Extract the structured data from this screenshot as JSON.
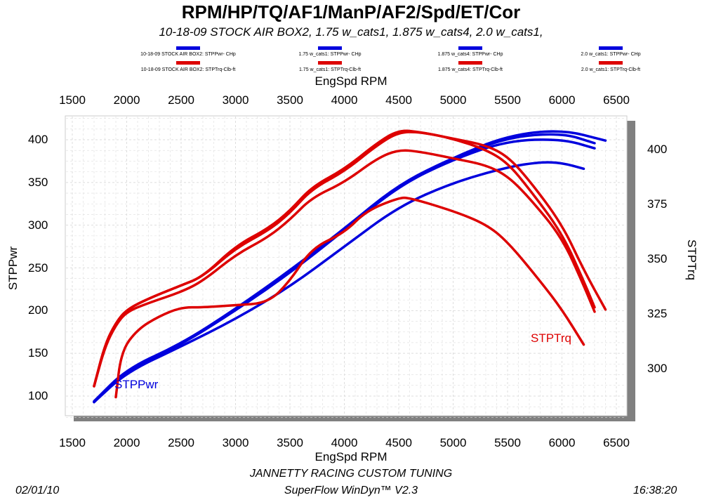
{
  "chart_data": {
    "type": "line",
    "title": "RPM/HP/TQ/AF1/ManP/AF2/Spd/ET/Cor",
    "subtitle": "10-18-09 STOCK AIR BOX2, 1.75 w_cats1, 1.875 w_cats4, 2.0 w_cats1,",
    "xlabel": "EngSpd  RPM",
    "ylabel": "STPPwr",
    "y2label": "STPTrq",
    "xlim": [
      1500,
      6500
    ],
    "ylim": [
      75,
      425
    ],
    "y2lim": [
      280,
      415
    ],
    "xticks": [
      1500,
      2000,
      2500,
      3000,
      3500,
      4000,
      4500,
      5000,
      5500,
      6000,
      6500
    ],
    "yticks": [
      100,
      150,
      200,
      250,
      300,
      350,
      400
    ],
    "y2ticks": [
      300,
      325,
      350,
      375,
      400
    ],
    "grid": true,
    "legend": [
      {
        "power": "10-18-09 STOCK AIR BOX2: STPPwr- CHp",
        "torque": "10-18-09 STOCK AIR BOX2: STPTrq-Clb-ft"
      },
      {
        "power": "1.75 w_cats1: STPPwr- CHp",
        "torque": "1.75 w_cats1: STPTrq-Clb-ft"
      },
      {
        "power": "1.875 w_cats4: STPPwr- CHp",
        "torque": "1.875 w_cats4: STPTrq-Clb-ft"
      },
      {
        "power": "2.0 w_cats1: STPPwr- CHp",
        "torque": "2.0 w_cats1: STPTrq-Clb-ft"
      }
    ],
    "annotations": {
      "power": "STPPwr",
      "torque": "STPTrq"
    },
    "power_color": "#0000dd",
    "torque_color": "#dd0000",
    "power_series": [
      {
        "name": "10-18-09 STOCK AIR BOX2",
        "x": [
          1700,
          2000,
          2500,
          3000,
          3500,
          4000,
          4500,
          5000,
          5500,
          5800,
          6000,
          6200
        ],
        "y": [
          93,
          128,
          158,
          190,
          228,
          275,
          322,
          350,
          368,
          374,
          373,
          366
        ]
      },
      {
        "name": "1.75 w_cats1",
        "x": [
          1700,
          2000,
          2500,
          3000,
          3500,
          4000,
          4500,
          5000,
          5500,
          6000,
          6300
        ],
        "y": [
          93,
          130,
          160,
          200,
          244,
          294,
          346,
          377,
          399,
          401,
          390
        ]
      },
      {
        "name": "1.875 w_cats4",
        "x": [
          1700,
          2000,
          2500,
          3000,
          3500,
          4000,
          4500,
          5000,
          5500,
          6000,
          6300
        ],
        "y": [
          93,
          131,
          161,
          201,
          246,
          295,
          347,
          378,
          403,
          408,
          396
        ]
      },
      {
        "name": "2.0 w_cats1",
        "x": [
          1700,
          2000,
          2500,
          3000,
          3500,
          4000,
          4500,
          5000,
          5500,
          6000,
          6400
        ],
        "y": [
          94,
          132,
          161,
          202,
          247,
          296,
          348,
          379,
          405,
          412,
          399
        ]
      }
    ],
    "torque_series": [
      {
        "name": "10-18-09 STOCK AIR BOX2",
        "x": [
          1900,
          1950,
          2100,
          2300,
          2500,
          2700,
          3000,
          3300,
          3500,
          3700,
          4000,
          4200,
          4500,
          4600,
          5000,
          5300,
          5500,
          5800,
          6000,
          6200
        ],
        "y": [
          287,
          308,
          318,
          324,
          328,
          328,
          329,
          330,
          340,
          355,
          362,
          372,
          378,
          378,
          372,
          366,
          358,
          340,
          327,
          311
        ]
      },
      {
        "name": "1.75 w_cats1",
        "x": [
          1700,
          1800,
          1900,
          2000,
          2200,
          2500,
          2700,
          3000,
          3300,
          3500,
          3700,
          4000,
          4300,
          4500,
          4700,
          5000,
          5300,
          5500,
          5700,
          6000,
          6200,
          6300
        ],
        "y": [
          292,
          310,
          320,
          326,
          330,
          335,
          340,
          352,
          360,
          368,
          378,
          385,
          396,
          400,
          399,
          396,
          393,
          388,
          378,
          360,
          338,
          326
        ]
      },
      {
        "name": "1.875 w_cats4",
        "x": [
          1700,
          1800,
          1900,
          2000,
          2200,
          2500,
          2700,
          3000,
          3300,
          3500,
          3700,
          4000,
          4300,
          4500,
          4700,
          5000,
          5300,
          5500,
          5700,
          6000,
          6200,
          6300
        ],
        "y": [
          292,
          311,
          321,
          327,
          332,
          338,
          342,
          356,
          364,
          372,
          383,
          391,
          403,
          409,
          408,
          405,
          400,
          394,
          382,
          362,
          340,
          328
        ]
      },
      {
        "name": "2.0 w_cats1",
        "x": [
          1700,
          1800,
          1900,
          2000,
          2200,
          2500,
          2700,
          3000,
          3300,
          3500,
          3700,
          4000,
          4300,
          4500,
          4700,
          5000,
          5300,
          5500,
          5700,
          6000,
          6200,
          6400
        ],
        "y": [
          292,
          311,
          321,
          327,
          332,
          338,
          342,
          355,
          363,
          371,
          382,
          390,
          402,
          408,
          408,
          405,
          402,
          397,
          386,
          366,
          345,
          327
        ]
      }
    ]
  },
  "footer": {
    "date": "02/01/10",
    "company": "JANNETTY RACING CUSTOM TUNING",
    "software": "SuperFlow WinDyn™ V2.3",
    "time": "16:38:20"
  }
}
